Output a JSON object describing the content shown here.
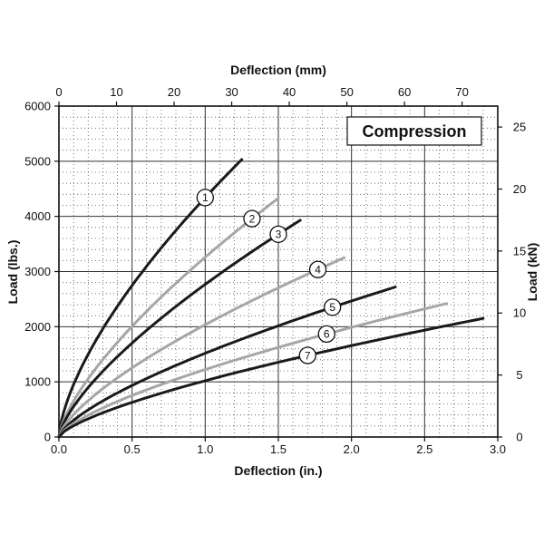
{
  "chart_data": {
    "type": "line",
    "title": "Compression",
    "xlabel": "Deflection (in.)",
    "x2label": "Deflection (mm)",
    "ylabel": "Load (lbs.)",
    "y2label": "Load (kN)",
    "xlim": [
      0,
      3
    ],
    "x2lim": [
      0,
      76.2
    ],
    "ylim": [
      0,
      6000
    ],
    "y2lim": [
      0,
      26.69
    ],
    "grid": true,
    "xticks": [
      "0.0",
      "0.5",
      "1.0",
      "1.5",
      "2.0",
      "2.5",
      "3.0"
    ],
    "x2ticks": [
      "0",
      "10",
      "20",
      "30",
      "40",
      "50",
      "60",
      "70"
    ],
    "yticks": [
      "0",
      "1000",
      "2000",
      "3000",
      "4000",
      "5000",
      "6000"
    ],
    "y2ticks": [
      "0",
      "5",
      "10",
      "15",
      "20",
      "25"
    ],
    "series": [
      {
        "name": "1",
        "color": "#1a1a1a",
        "x_end": 1.25,
        "y_end": 5030,
        "exponent": 0.66,
        "marker_x": 1.0
      },
      {
        "name": "2",
        "color": "#a6a6a6",
        "x_end": 1.5,
        "y_end": 4330,
        "exponent": 0.7,
        "marker_x": 1.32
      },
      {
        "name": "3",
        "color": "#1a1a1a",
        "x_end": 1.65,
        "y_end": 3930,
        "exponent": 0.7,
        "marker_x": 1.5
      },
      {
        "name": "4",
        "color": "#a6a6a6",
        "x_end": 1.95,
        "y_end": 3250,
        "exponent": 0.7,
        "marker_x": 1.77
      },
      {
        "name": "5",
        "color": "#1a1a1a",
        "x_end": 2.3,
        "y_end": 2720,
        "exponent": 0.7,
        "marker_x": 1.87
      },
      {
        "name": "6",
        "color": "#a6a6a6",
        "x_end": 2.65,
        "y_end": 2420,
        "exponent": 0.7,
        "marker_x": 1.83
      },
      {
        "name": "7",
        "color": "#1a1a1a",
        "x_end": 2.9,
        "y_end": 2150,
        "exponent": 0.7,
        "marker_x": 1.7
      }
    ]
  }
}
